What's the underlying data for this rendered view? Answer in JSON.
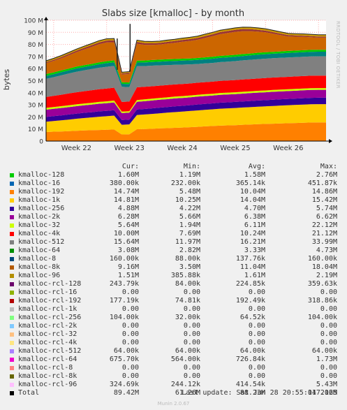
{
  "chart_data": {
    "type": "area",
    "title": "Slabs size [kmalloc] - by month",
    "ylabel": "bytes",
    "ylim": [
      0,
      100000000
    ],
    "yticks": [
      0,
      10000000,
      20000000,
      30000000,
      40000000,
      50000000,
      60000000,
      70000000,
      80000000,
      90000000,
      100000000
    ],
    "ytick_labels": [
      "0",
      "10 M",
      "20 M",
      "30 M",
      "40 M",
      "50 M",
      "60 M",
      "70 M",
      "80 M",
      "90 M",
      "100 M"
    ],
    "xlim": [
      0,
      37
    ],
    "xticks": [
      1,
      8,
      15,
      22,
      29,
      36
    ],
    "xtick_labels": [
      "Week 22",
      "Week 23",
      "Week 24",
      "Week 25",
      "Week 26"
    ],
    "label_x": [
      4,
      11,
      18,
      25,
      32
    ],
    "grid": true,
    "stacked": true,
    "x": [
      0,
      1,
      2,
      3,
      4,
      5,
      6,
      7,
      8,
      9,
      10,
      11,
      12,
      13,
      14,
      15,
      16,
      17,
      18,
      19,
      20,
      21,
      22,
      23,
      24,
      25,
      26,
      27,
      28,
      29,
      30,
      31,
      32,
      33,
      34,
      35,
      36,
      37
    ],
    "series": [
      {
        "name": "kmalloc-1k",
        "color": "#ff8000",
        "values": [
          7.5,
          7.8,
          8.0,
          8.2,
          8.5,
          8.8,
          9.0,
          9.2,
          9.4,
          9.6,
          5.5,
          5.6,
          9.8,
          10.0,
          10.2,
          10.5,
          10.7,
          11.0,
          11.2,
          11.5,
          11.8,
          12.2,
          12.5,
          12.8,
          13.0,
          13.2,
          13.5,
          13.7,
          14.0,
          14.2,
          14.4,
          14.6,
          14.8,
          15.0,
          15.2,
          15.4,
          15.5,
          15.5
        ]
      },
      {
        "name": "kmalloc-32",
        "color": "#ffcc00",
        "values": [
          8.5,
          8.8,
          9.2,
          9.6,
          10.0,
          10.3,
          10.6,
          11.0,
          11.2,
          11.5,
          8.0,
          8.2,
          11.8,
          12.0,
          12.3,
          12.5,
          12.8,
          13.0,
          13.2,
          13.4,
          13.6,
          13.7,
          13.8,
          14.0,
          14.1,
          14.2,
          14.3,
          14.4,
          14.5,
          14.6,
          14.7,
          14.8,
          14.9,
          15.0,
          15.0,
          15.1,
          15.1,
          15.1
        ]
      },
      {
        "name": "kmalloc-256",
        "color": "#330099",
        "values": [
          4.0,
          4.1,
          4.1,
          4.2,
          4.2,
          4.3,
          4.3,
          4.4,
          4.4,
          4.5,
          4.0,
          4.0,
          4.5,
          4.6,
          4.6,
          4.7,
          4.7,
          4.8,
          4.8,
          4.8,
          4.9,
          4.9,
          4.9,
          5.0,
          5.0,
          5.0,
          5.0,
          5.1,
          5.1,
          5.1,
          5.2,
          5.2,
          5.2,
          5.2,
          5.3,
          5.3,
          5.3,
          5.3
        ]
      },
      {
        "name": "kmalloc-2k",
        "color": "#990099",
        "values": [
          6.0,
          6.0,
          6.1,
          6.1,
          6.2,
          6.2,
          6.3,
          6.3,
          6.4,
          6.4,
          5.7,
          5.7,
          6.4,
          6.4,
          6.5,
          6.5,
          6.5,
          6.5,
          6.5,
          6.5,
          6.5,
          6.5,
          6.5,
          6.5,
          6.5,
          6.5,
          6.5,
          6.5,
          6.5,
          6.5,
          6.5,
          6.5,
          6.5,
          6.5,
          6.5,
          6.5,
          6.5,
          6.5
        ]
      },
      {
        "name": "kmalloc-32 (lime)",
        "color": "#ccff00",
        "values": [
          1.5,
          1.5,
          1.5,
          1.5,
          1.5,
          1.5,
          1.5,
          1.5,
          1.5,
          1.5,
          1.2,
          1.2,
          1.5,
          1.5,
          1.5,
          1.5,
          1.5,
          1.5,
          1.5,
          1.5,
          1.5,
          1.5,
          1.5,
          1.5,
          1.5,
          1.5,
          1.5,
          1.5,
          1.5,
          1.5,
          1.5,
          1.5,
          1.5,
          1.5,
          1.5,
          1.5,
          1.5,
          1.5
        ]
      },
      {
        "name": "kmalloc-4k",
        "color": "#ff0000",
        "values": [
          9.0,
          9.2,
          9.5,
          9.8,
          10.0,
          10.2,
          10.4,
          10.5,
          10.6,
          10.7,
          8.0,
          8.0,
          10.5,
          10.4,
          10.3,
          10.2,
          10.2,
          10.1,
          10.1,
          10.0,
          10.0,
          10.0,
          10.0,
          10.1,
          10.1,
          10.1,
          10.2,
          10.2,
          10.2,
          10.3,
          10.3,
          10.3,
          10.3,
          10.3,
          10.3,
          10.3,
          10.3,
          10.3
        ]
      },
      {
        "name": "kmalloc-512",
        "color": "#808080",
        "values": [
          15.0,
          15.5,
          16.0,
          16.5,
          17.0,
          17.2,
          17.5,
          17.8,
          18.0,
          18.0,
          12.5,
          12.0,
          17.5,
          17.2,
          17.0,
          16.8,
          16.5,
          16.2,
          16.0,
          15.8,
          15.5,
          15.5,
          15.5,
          15.5,
          15.6,
          15.7,
          15.8,
          15.9,
          16.0,
          16.0,
          16.0,
          16.0,
          16.0,
          16.0,
          16.0,
          16.0,
          16.0,
          16.0
        ]
      },
      {
        "name": "kmalloc-64",
        "color": "#008080",
        "values": [
          2.5,
          2.5,
          2.6,
          2.6,
          2.7,
          2.8,
          2.8,
          2.9,
          3.0,
          3.0,
          2.5,
          2.5,
          3.0,
          3.0,
          3.1,
          3.1,
          3.2,
          3.2,
          3.3,
          3.3,
          3.4,
          3.4,
          3.5,
          3.5,
          3.5,
          3.6,
          3.6,
          3.6,
          3.7,
          3.7,
          3.7,
          3.7,
          3.8,
          3.8,
          3.8,
          3.8,
          3.8,
          3.8
        ]
      },
      {
        "name": "kmalloc-128",
        "color": "#00cc00",
        "values": [
          1.5,
          1.5,
          1.5,
          1.5,
          1.5,
          1.5,
          1.5,
          1.6,
          1.6,
          1.6,
          1.3,
          1.3,
          1.6,
          1.6,
          1.6,
          1.6,
          1.6,
          1.6,
          1.6,
          1.6,
          1.6,
          1.6,
          1.6,
          1.6,
          1.6,
          1.6,
          1.6,
          1.6,
          1.6,
          1.6,
          1.6,
          1.6,
          1.6,
          1.6,
          1.6,
          1.6,
          1.6,
          1.6
        ]
      },
      {
        "name": "kmalloc-8k",
        "color": "#cc6600",
        "values": [
          9.0,
          9.5,
          10.0,
          11.0,
          12.0,
          13.0,
          14.0,
          15.0,
          15.5,
          15.0,
          6.5,
          7.0,
          14.0,
          13.0,
          12.5,
          12.5,
          13.0,
          13.5,
          14.0,
          14.5,
          15.0,
          16.0,
          17.0,
          18.0,
          18.5,
          19.0,
          19.0,
          18.5,
          17.5,
          16.5,
          15.0,
          13.5,
          12.0,
          11.5,
          11.0,
          10.5,
          10.0,
          10.0
        ]
      },
      {
        "name": "kmalloc-rcl-64",
        "color": "#993333",
        "values": [
          0.8,
          0.9,
          1.0,
          1.1,
          1.2,
          1.3,
          1.4,
          1.5,
          1.6,
          1.6,
          0.8,
          1.0,
          1.5,
          1.4,
          1.3,
          1.3,
          1.4,
          1.4,
          1.5,
          1.5,
          1.5,
          1.6,
          1.6,
          1.7,
          1.7,
          1.7,
          1.7,
          1.6,
          1.5,
          1.4,
          1.3,
          1.2,
          1.1,
          1.0,
          1.0,
          0.9,
          0.9,
          0.9
        ]
      },
      {
        "name": "kmalloc-96",
        "color": "#cc9900",
        "values": [
          1.2,
          1.2,
          1.3,
          1.3,
          1.3,
          1.4,
          1.4,
          1.4,
          1.5,
          1.5,
          1.0,
          1.0,
          1.5,
          1.5,
          1.5,
          1.5,
          1.5,
          1.5,
          1.5,
          1.5,
          1.6,
          1.6,
          1.6,
          1.6,
          1.6,
          1.6,
          1.6,
          1.6,
          1.6,
          1.6,
          1.5,
          1.5,
          1.5,
          1.5,
          1.5,
          1.5,
          1.5,
          1.5
        ]
      }
    ],
    "spike": {
      "x": 11.1,
      "value": 97.0
    },
    "dip": {
      "x": 9.4,
      "value": 59.0
    }
  },
  "legend": {
    "header": {
      "cur": "Cur:",
      "min": "Min:",
      "avg": "Avg:",
      "max": "Max:"
    },
    "rows": [
      {
        "name": "kmalloc-128",
        "color": "#00cc00",
        "cur": "1.60M",
        "min": "1.19M",
        "avg": "1.58M",
        "max": "2.76M"
      },
      {
        "name": "kmalloc-16",
        "color": "#0066b3",
        "cur": "380.00k",
        "min": "232.00k",
        "avg": "365.14k",
        "max": "451.87k"
      },
      {
        "name": "kmalloc-192",
        "color": "#ff8000",
        "cur": "14.74M",
        "min": "5.48M",
        "avg": "10.04M",
        "max": "14.86M"
      },
      {
        "name": "kmalloc-1k",
        "color": "#ffcc00",
        "cur": "14.81M",
        "min": "10.25M",
        "avg": "14.04M",
        "max": "15.42M"
      },
      {
        "name": "kmalloc-256",
        "color": "#330099",
        "cur": "4.88M",
        "min": "4.22M",
        "avg": "4.70M",
        "max": "5.74M"
      },
      {
        "name": "kmalloc-2k",
        "color": "#990099",
        "cur": "6.28M",
        "min": "5.66M",
        "avg": "6.38M",
        "max": "6.62M"
      },
      {
        "name": "kmalloc-32",
        "color": "#ccff00",
        "cur": "5.64M",
        "min": "1.94M",
        "avg": "6.11M",
        "max": "22.12M"
      },
      {
        "name": "kmalloc-4k",
        "color": "#ff0000",
        "cur": "10.00M",
        "min": "7.69M",
        "avg": "10.24M",
        "max": "21.12M"
      },
      {
        "name": "kmalloc-512",
        "color": "#808080",
        "cur": "15.64M",
        "min": "11.97M",
        "avg": "16.21M",
        "max": "33.99M"
      },
      {
        "name": "kmalloc-64",
        "color": "#008f00",
        "cur": "3.08M",
        "min": "2.82M",
        "avg": "3.33M",
        "max": "4.73M"
      },
      {
        "name": "kmalloc-8",
        "color": "#00487d",
        "cur": "160.00k",
        "min": "88.00k",
        "avg": "137.76k",
        "max": "160.00k"
      },
      {
        "name": "kmalloc-8k",
        "color": "#b35a00",
        "cur": "9.16M",
        "min": "3.50M",
        "avg": "11.04M",
        "max": "18.04M"
      },
      {
        "name": "kmalloc-96",
        "color": "#b38f00",
        "cur": "1.51M",
        "min": "385.88k",
        "avg": "1.61M",
        "max": "2.19M"
      },
      {
        "name": "kmalloc-rcl-128",
        "color": "#6b006b",
        "cur": "243.79k",
        "min": "84.00k",
        "avg": "224.85k",
        "max": "359.63k"
      },
      {
        "name": "kmalloc-rcl-16",
        "color": "#8fb300",
        "cur": "0.00",
        "min": "0.00",
        "avg": "0.00",
        "max": "0.00"
      },
      {
        "name": "kmalloc-rcl-192",
        "color": "#b30000",
        "cur": "177.19k",
        "min": "74.81k",
        "avg": "192.49k",
        "max": "318.86k"
      },
      {
        "name": "kmalloc-rcl-1k",
        "color": "#bebebe",
        "cur": "0.00",
        "min": "0.00",
        "avg": "0.00",
        "max": "0.00"
      },
      {
        "name": "kmalloc-rcl-256",
        "color": "#80ff80",
        "cur": "104.00k",
        "min": "32.00k",
        "avg": "64.52k",
        "max": "104.00k"
      },
      {
        "name": "kmalloc-rcl-2k",
        "color": "#80c9ff",
        "cur": "0.00",
        "min": "0.00",
        "avg": "0.00",
        "max": "0.00"
      },
      {
        "name": "kmalloc-rcl-32",
        "color": "#ffc080",
        "cur": "0.00",
        "min": "0.00",
        "avg": "0.00",
        "max": "0.00"
      },
      {
        "name": "kmalloc-rcl-4k",
        "color": "#ffe680",
        "cur": "0.00",
        "min": "0.00",
        "avg": "0.00",
        "max": "0.00"
      },
      {
        "name": "kmalloc-rcl-512",
        "color": "#aa80ff",
        "cur": "64.00k",
        "min": "64.00k",
        "avg": "64.00k",
        "max": "64.00k"
      },
      {
        "name": "kmalloc-rcl-64",
        "color": "#ee00cc",
        "cur": "675.70k",
        "min": "564.00k",
        "avg": "726.84k",
        "max": "1.73M"
      },
      {
        "name": "kmalloc-rcl-8",
        "color": "#ff8080",
        "cur": "0.00",
        "min": "0.00",
        "avg": "0.00",
        "max": "0.00"
      },
      {
        "name": "kmalloc-rcl-8k",
        "color": "#666600",
        "cur": "0.00",
        "min": "0.00",
        "avg": "0.00",
        "max": "0.00"
      },
      {
        "name": "kmalloc-rcl-96",
        "color": "#ffbfff",
        "cur": "324.69k",
        "min": "244.12k",
        "avg": "414.54k",
        "max": "5.43M"
      },
      {
        "name": "Total",
        "color": "#000000",
        "cur": "89.42M",
        "min": "61.26M",
        "avg": "88.23M",
        "max": "117.16M"
      }
    ]
  },
  "footer": {
    "last_update": "Last update: Sat Jun 28 20:55:04 2025",
    "munin_version": "Munin 2.0.67",
    "rrd_credit": "RRDTOOL / TOBI OETIKER"
  }
}
